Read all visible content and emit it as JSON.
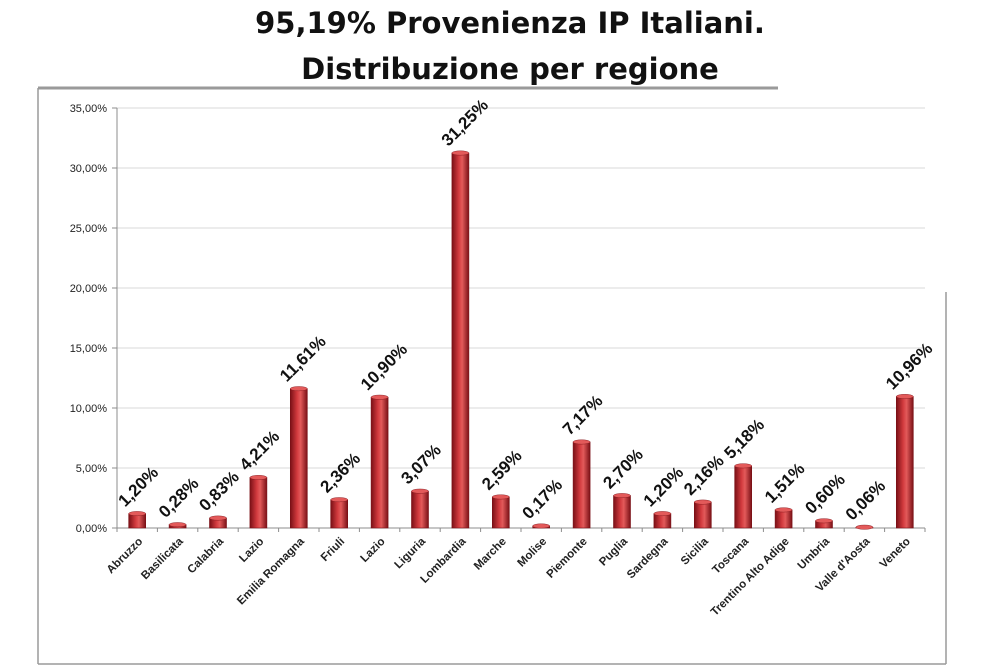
{
  "title_line1": "95,19% Provenienza IP Italiani.",
  "title_line2": "Distribuzione per regione",
  "colors": {
    "bar": "#c0282d",
    "bar_dark": "#7a1016",
    "bar_light": "#e35a5a",
    "grid": "#d9d9d9",
    "axis": "#8c8c8c",
    "frame": "#888888"
  },
  "chart_data": {
    "type": "bar",
    "categories": [
      "Abruzzo",
      "Basilicata",
      "Calabria",
      "Lazio",
      "Emilia Romagna",
      "Friuli",
      "Lazio",
      "Liguria",
      "Lombardia",
      "Marche",
      "Molise",
      "Piemonte",
      "Puglia",
      "Sardegna",
      "Sicilia",
      "Toscana",
      "Trentino Alto Adige",
      "Umbria",
      "Valle d'Aosta",
      "Veneto"
    ],
    "values": [
      1.2,
      0.28,
      0.83,
      4.21,
      11.61,
      2.36,
      10.9,
      3.07,
      31.25,
      2.59,
      0.17,
      7.17,
      2.7,
      1.2,
      2.16,
      5.18,
      1.51,
      0.6,
      0.06,
      10.96
    ],
    "data_labels": [
      "1,20%",
      "0,28%",
      "0,83%",
      "4,21%",
      "11,61%",
      "2,36%",
      "10,90%",
      "3,07%",
      "31,25%",
      "2,59%",
      "0,17%",
      "7,17%",
      "2,70%",
      "1,20%",
      "2,16%",
      "5,18%",
      "1,51%",
      "0,60%",
      "0,06%",
      "10,96%"
    ],
    "y_ticks": [
      0,
      5,
      10,
      15,
      20,
      25,
      30,
      35
    ],
    "y_tick_labels": [
      "0,00%",
      "5,00%",
      "10,00%",
      "15,00%",
      "20,00%",
      "25,00%",
      "30,00%",
      "35,00%"
    ],
    "ylim": [
      0,
      35
    ],
    "title": "95,19% Provenienza IP Italiani. Distribuzione per regione",
    "xlabel": "",
    "ylabel": "",
    "grid": true,
    "legend": "none"
  }
}
